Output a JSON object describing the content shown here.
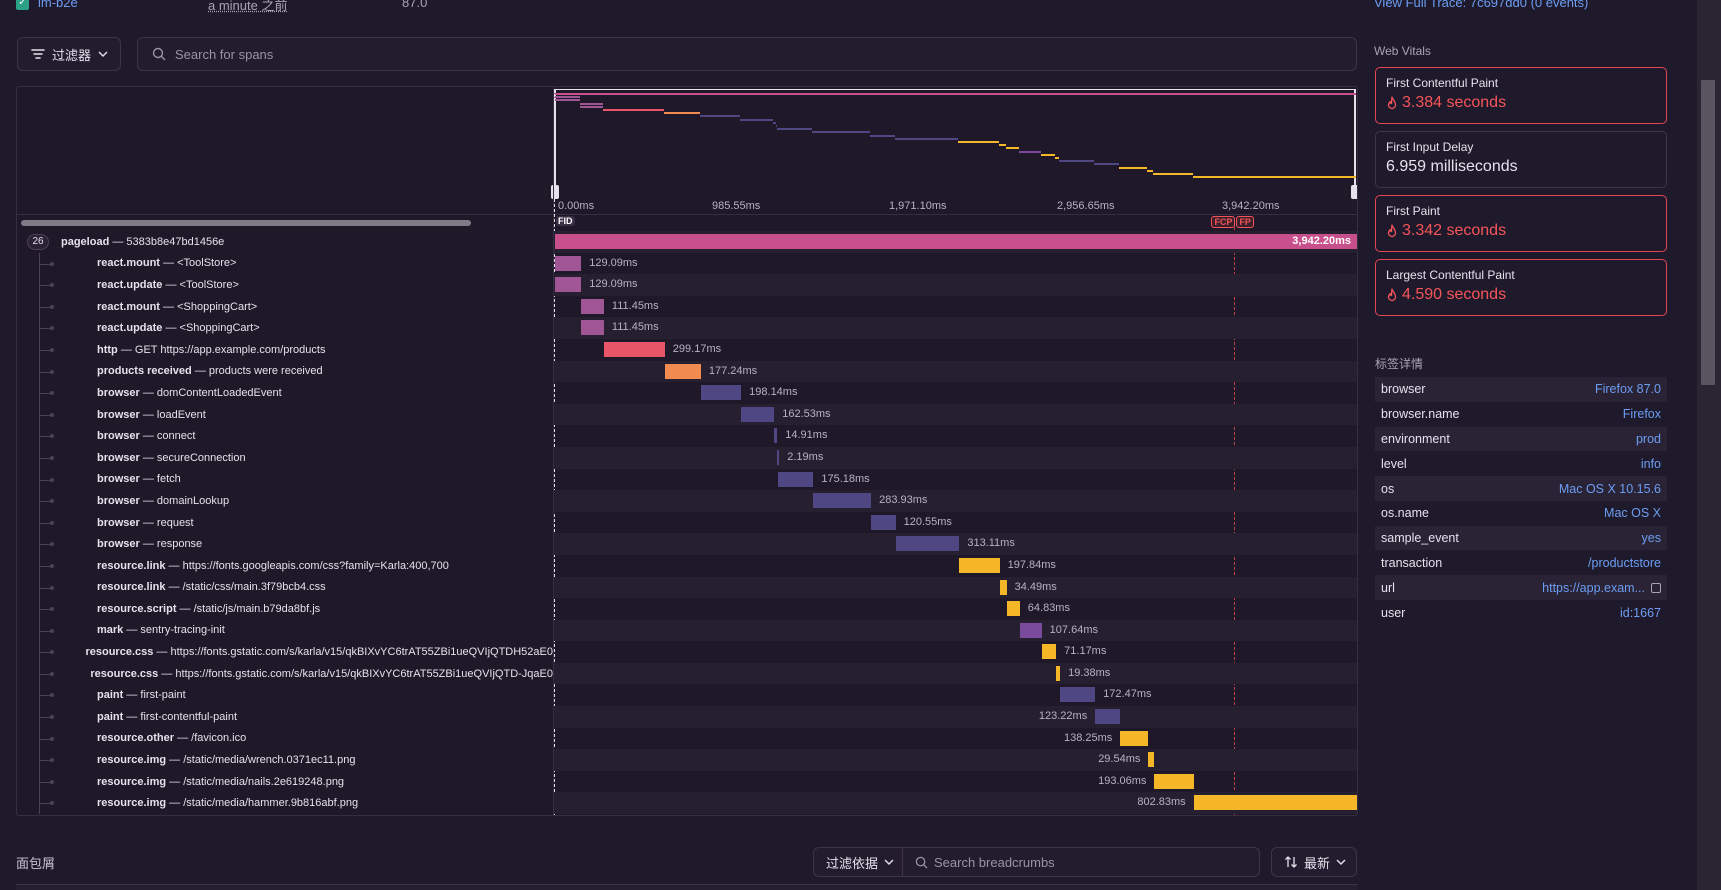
{
  "top": {
    "project": "im-b2e",
    "time_ago": "a minute 之前",
    "version": "87.0",
    "full_trace_link": "View Full Trace: 7c697dd0 (0 events)"
  },
  "filter": {
    "label": "过滤器",
    "search_placeholder": "Search for spans"
  },
  "timescale": [
    "0.00ms",
    "985.55ms",
    "1,971.10ms",
    "2,956.65ms",
    "3,942.20ms"
  ],
  "markers": {
    "fid": "FID",
    "fcp": "FCP",
    "fp": "FP"
  },
  "colors": {
    "pink": "#c74f8b",
    "purple": "#a05594",
    "red": "#e85568",
    "orange": "#f28b4f",
    "indigo": "#4e4783",
    "violet": "#7a4a9c",
    "yellow": "#f5b728"
  },
  "spans": [
    {
      "op": "pageload",
      "desc": "5383b8e47bd1456e",
      "start": 0,
      "dur": 3942.2,
      "dur_label": "3,942.20ms",
      "color": "pink",
      "root": true,
      "count": "26"
    },
    {
      "op": "react.mount",
      "desc": "<ToolStore>",
      "start": 0,
      "dur": 129.09,
      "dur_label": "129.09ms",
      "color": "purple"
    },
    {
      "op": "react.update",
      "desc": "<ToolStore>",
      "start": 0,
      "dur": 129.09,
      "dur_label": "129.09ms",
      "color": "purple"
    },
    {
      "op": "react.mount",
      "desc": "<ShoppingCart>",
      "start": 129.09,
      "dur": 111.45,
      "dur_label": "111.45ms",
      "color": "purple"
    },
    {
      "op": "react.update",
      "desc": "<ShoppingCart>",
      "start": 129.09,
      "dur": 111.45,
      "dur_label": "111.45ms",
      "color": "purple"
    },
    {
      "op": "http",
      "desc": "GET https://app.example.com/products",
      "start": 240.54,
      "dur": 299.17,
      "dur_label": "299.17ms",
      "color": "red"
    },
    {
      "op": "products received",
      "desc": "products were received",
      "start": 539.71,
      "dur": 177.24,
      "dur_label": "177.24ms",
      "color": "orange"
    },
    {
      "op": "browser",
      "desc": "domContentLoadedEvent",
      "start": 716.95,
      "dur": 198.14,
      "dur_label": "198.14ms",
      "color": "indigo"
    },
    {
      "op": "browser",
      "desc": "loadEvent",
      "start": 915.09,
      "dur": 162.53,
      "dur_label": "162.53ms",
      "color": "indigo"
    },
    {
      "op": "browser",
      "desc": "connect",
      "start": 1077.62,
      "dur": 14.91,
      "dur_label": "14.91ms",
      "color": "indigo"
    },
    {
      "op": "browser",
      "desc": "secureConnection",
      "start": 1092.53,
      "dur": 2.19,
      "dur_label": "2.19ms",
      "color": "indigo"
    },
    {
      "op": "browser",
      "desc": "fetch",
      "start": 1094.72,
      "dur": 175.18,
      "dur_label": "175.18ms",
      "color": "indigo"
    },
    {
      "op": "browser",
      "desc": "domainLookup",
      "start": 1269.9,
      "dur": 283.93,
      "dur_label": "283.93ms",
      "color": "indigo"
    },
    {
      "op": "browser",
      "desc": "request",
      "start": 1553.83,
      "dur": 120.55,
      "dur_label": "120.55ms",
      "color": "indigo"
    },
    {
      "op": "browser",
      "desc": "response",
      "start": 1674.38,
      "dur": 313.11,
      "dur_label": "313.11ms",
      "color": "indigo"
    },
    {
      "op": "resource.link",
      "desc": "https://fonts.googleapis.com/css?family=Karla:400,700",
      "start": 1987.49,
      "dur": 197.84,
      "dur_label": "197.84ms",
      "color": "yellow"
    },
    {
      "op": "resource.link",
      "desc": "/static/css/main.3f79bcb4.css",
      "start": 2185.33,
      "dur": 34.49,
      "dur_label": "34.49ms",
      "color": "yellow"
    },
    {
      "op": "resource.script",
      "desc": "/static/js/main.b79da8bf.js",
      "start": 2219.82,
      "dur": 64.83,
      "dur_label": "64.83ms",
      "color": "yellow"
    },
    {
      "op": "mark",
      "desc": "sentry-tracing-init",
      "start": 2284.65,
      "dur": 107.64,
      "dur_label": "107.64ms",
      "color": "violet"
    },
    {
      "op": "resource.css",
      "desc": "https://fonts.gstatic.com/s/karla/v15/qkBIXvYC6trAT55ZBi1ueQVIjQTDH52aE0",
      "start": 2392.29,
      "dur": 71.17,
      "dur_label": "71.17ms",
      "color": "yellow"
    },
    {
      "op": "resource.css",
      "desc": "https://fonts.gstatic.com/s/karla/v15/qkBIXvYC6trAT55ZBi1ueQVIjQTD-JqaE0",
      "start": 2463.46,
      "dur": 19.38,
      "dur_label": "19.38ms",
      "color": "yellow"
    },
    {
      "op": "paint",
      "desc": "first-paint",
      "start": 2482.84,
      "dur": 172.47,
      "dur_label": "172.47ms",
      "color": "indigo"
    },
    {
      "op": "paint",
      "desc": "first-contentful-paint",
      "start": 2655.31,
      "dur": 123.22,
      "dur_label": "123.22ms",
      "color": "indigo",
      "label_left": true
    },
    {
      "op": "resource.other",
      "desc": "/favicon.ico",
      "start": 2778.53,
      "dur": 138.25,
      "dur_label": "138.25ms",
      "color": "yellow",
      "label_left": true
    },
    {
      "op": "resource.img",
      "desc": "/static/media/wrench.0371ec11.png",
      "start": 2916.78,
      "dur": 29.54,
      "dur_label": "29.54ms",
      "color": "yellow",
      "label_left": true
    },
    {
      "op": "resource.img",
      "desc": "/static/media/nails.2e619248.png",
      "start": 2946.32,
      "dur": 193.06,
      "dur_label": "193.06ms",
      "color": "yellow",
      "label_left": true
    },
    {
      "op": "resource.img",
      "desc": "/static/media/hammer.9b816abf.png",
      "start": 3139.38,
      "dur": 802.83,
      "dur_label": "802.83ms",
      "color": "yellow",
      "label_left": true
    }
  ],
  "timeline": {
    "total_ms": 3942.2,
    "fcp_ms": 3384,
    "fp_ms": 3342
  },
  "breadcrumbs": {
    "title": "面包屑",
    "filter_label": "过滤依据",
    "search_placeholder": "Search breadcrumbs",
    "sort_label": "最新"
  },
  "sidebar": {
    "web_vitals_title": "Web Vitals",
    "vitals": [
      {
        "name": "First Contentful Paint",
        "value": "3.384 seconds",
        "bad": true
      },
      {
        "name": "First Input Delay",
        "value": "6.959 milliseconds",
        "bad": false
      },
      {
        "name": "First Paint",
        "value": "3.342 seconds",
        "bad": true
      },
      {
        "name": "Largest Contentful Paint",
        "value": "4.590 seconds",
        "bad": true
      }
    ],
    "tags_title": "标签详情",
    "tags": [
      {
        "key": "browser",
        "value": "Firefox 87.0"
      },
      {
        "key": "browser.name",
        "value": "Firefox"
      },
      {
        "key": "environment",
        "value": "prod"
      },
      {
        "key": "level",
        "value": "info"
      },
      {
        "key": "os",
        "value": "Mac OS X 10.15.6"
      },
      {
        "key": "os.name",
        "value": "Mac OS X"
      },
      {
        "key": "sample_event",
        "value": "yes"
      },
      {
        "key": "transaction",
        "value": "/productstore"
      },
      {
        "key": "url",
        "value": "https://app.exam...",
        "external": true
      },
      {
        "key": "user",
        "value": "id:1667"
      }
    ]
  }
}
